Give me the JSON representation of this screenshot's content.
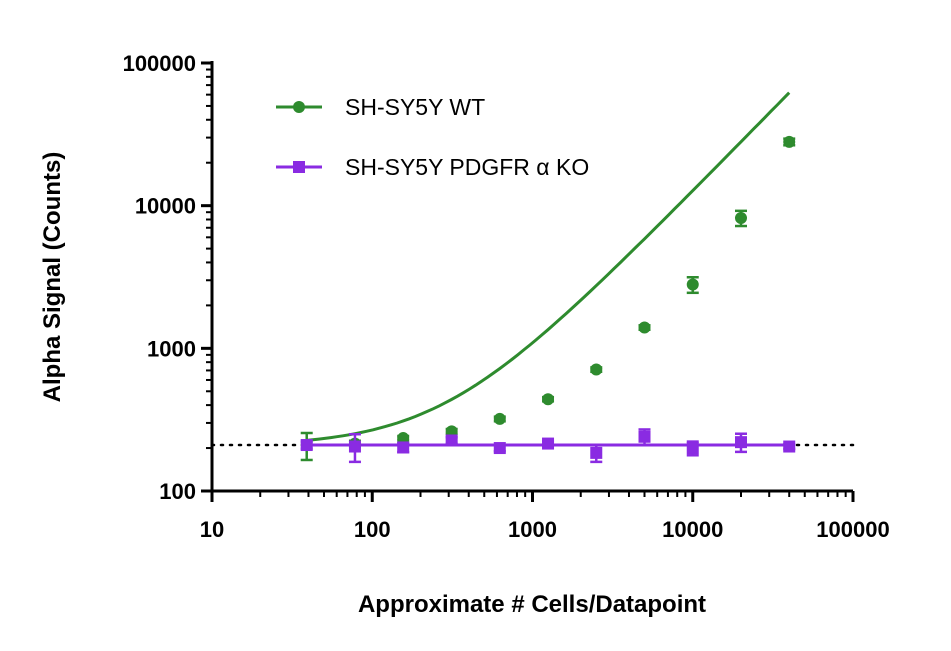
{
  "chart_data": {
    "type": "scatter",
    "xlabel": "Approximate # Cells/Datapoint",
    "ylabel": "Alpha Signal (Counts)",
    "x_scale": "log",
    "y_scale": "log",
    "xlim": [
      10,
      100000
    ],
    "ylim": [
      100,
      100000
    ],
    "x_ticks": [
      {
        "value": 10,
        "label": "10"
      },
      {
        "value": 100,
        "label": "100"
      },
      {
        "value": 1000,
        "label": "1000"
      },
      {
        "value": 10000,
        "label": "10000"
      },
      {
        "value": 100000,
        "label": "100000"
      }
    ],
    "y_ticks": [
      {
        "value": 100,
        "label": "100"
      },
      {
        "value": 1000,
        "label": "1000"
      },
      {
        "value": 10000,
        "label": "10000"
      },
      {
        "value": 100000,
        "label": "100000"
      }
    ],
    "grid": false,
    "legend_position": "top-left",
    "baseline": {
      "value": 210,
      "style": "dotted",
      "color": "#000000"
    },
    "series": [
      {
        "name": "SH-SY5Y WT",
        "color": "#2e8b2e",
        "marker": "circle",
        "points": [
          {
            "x": 39,
            "y": 210,
            "err": 45
          },
          {
            "x": 78,
            "y": 215,
            "err": 10
          },
          {
            "x": 156,
            "y": 235,
            "err": 8
          },
          {
            "x": 313,
            "y": 262,
            "err": 10
          },
          {
            "x": 625,
            "y": 320,
            "err": 12
          },
          {
            "x": 1250,
            "y": 440,
            "err": 15
          },
          {
            "x": 2500,
            "y": 710,
            "err": 25
          },
          {
            "x": 5000,
            "y": 1400,
            "err": 50
          },
          {
            "x": 10000,
            "y": 2800,
            "err": 350
          },
          {
            "x": 20000,
            "y": 8200,
            "err": 1000
          },
          {
            "x": 40000,
            "y": 28000,
            "err": 1500
          }
        ],
        "fit_curve": {
          "bottom": 205,
          "slope": 0.315,
          "exponent": 1.15
        }
      },
      {
        "name": "SH-SY5Y PDGFR α KO",
        "color": "#8a2be2",
        "marker": "square",
        "points": [
          {
            "x": 39,
            "y": 210,
            "err": 12
          },
          {
            "x": 78,
            "y": 205,
            "err": 45
          },
          {
            "x": 156,
            "y": 202,
            "err": 15
          },
          {
            "x": 313,
            "y": 226,
            "err": 12
          },
          {
            "x": 625,
            "y": 200,
            "err": 10
          },
          {
            "x": 1250,
            "y": 215,
            "err": 8
          },
          {
            "x": 2500,
            "y": 185,
            "err": 25
          },
          {
            "x": 5000,
            "y": 240,
            "err": 30
          },
          {
            "x": 10000,
            "y": 200,
            "err": 22
          },
          {
            "x": 20000,
            "y": 220,
            "err": 32
          },
          {
            "x": 40000,
            "y": 205,
            "err": 8
          }
        ],
        "fit_line": {
          "y": 210
        }
      }
    ]
  }
}
